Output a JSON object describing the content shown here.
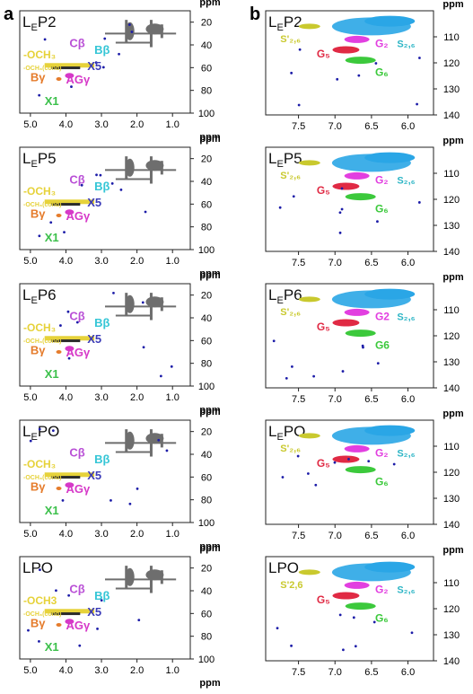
{
  "panel_letters": {
    "a": "a",
    "b": "b"
  },
  "axis_unit": "ppm",
  "colors": {
    "methoxyl": "#e6d23a",
    "cbeta": "#b94fd6",
    "bbeta": "#35c6d6",
    "x5": "#3b3bb8",
    "bgamma": "#e57c2c",
    "aggamma": "#d639c8",
    "x1": "#3cc04b",
    "gray_crosspeak": "#6e6e6e",
    "blue_noise": "#1c1ca8",
    "s26": "#2aa6e6",
    "s26prime": "#c9c92e",
    "g2": "#e23fe0",
    "g5": "#e02a44",
    "g6": "#3cc93c"
  },
  "left_axis": {
    "x_ticks": [
      "5.0",
      "4.0",
      "3.0",
      "2.0",
      "1.0"
    ],
    "y_ticks": [
      "20",
      "40",
      "60",
      "80",
      "100"
    ]
  },
  "right_axis": {
    "x_ticks": [
      "7.5",
      "7.0",
      "6.5",
      "6.0"
    ],
    "y_ticks": [
      "110",
      "120",
      "130",
      "140"
    ]
  },
  "rows": [
    {
      "sample_left": "LEP2",
      "sample_right": "LEP2",
      "labels_a": {
        "och3": "-OCH₃",
        "och3_cond": "-OCH₃(cond)",
        "cbeta": "Cβ",
        "bbeta": "Bβ",
        "x5": "X5",
        "bgamma": "Bγ",
        "aggamma": "AGγ",
        "x1": "X1"
      },
      "labels_b": {
        "s26p": "S'₂,₆",
        "s26": "S₂,₆",
        "g5": "G₅",
        "g2": "G₂",
        "g6": "G₆"
      }
    },
    {
      "sample_left": "LEP5",
      "sample_right": "LEP5",
      "labels_a": {
        "och3": "-OCH₃",
        "och3_cond": "-OCH₃(cond)",
        "cbeta": "Cβ",
        "bbeta": "Bβ",
        "x5": "X5",
        "bgamma": "Bγ",
        "aggamma": "AGγ",
        "x1": "X1"
      },
      "labels_b": {
        "s26p": "S'₂,₆",
        "s26": "S₂,₆",
        "g5": "G₅",
        "g2": "G₂",
        "g6": "G₆"
      }
    },
    {
      "sample_left": "LEP6",
      "sample_right": "LEP6",
      "labels_a": {
        "och3": "-OCH₃",
        "och3_cond": "-OCH₃(cond)",
        "cbeta": "Cβ",
        "bbeta": "Bβ",
        "x5": "X5",
        "bgamma": "Bγ",
        "aggamma": "AGγ",
        "x1": "X1"
      },
      "labels_b": {
        "s26p": "S'₂,₆",
        "s26": "S₂,₆",
        "g5": "G₅",
        "g2": "G2",
        "g6": "G6"
      }
    },
    {
      "sample_left": "LEPO",
      "sample_right": "LEPO",
      "labels_a": {
        "och3": "-OCH₃",
        "och3_cond": "-OCH₃(cond)",
        "cbeta": "Cβ",
        "bbeta": "Bβ",
        "x5": "X5",
        "bgamma": "Bγ",
        "aggamma": "AGγ",
        "x1": "X1"
      },
      "labels_b": {
        "s26p": "S'₂,₆",
        "s26": "S₂,₆",
        "g5": "G₅",
        "g2": "G₂",
        "g6": "G₆"
      }
    },
    {
      "sample_left": "LPO",
      "sample_right": "LPO",
      "labels_a": {
        "och3": "-OCH3",
        "och3_cond": "-OCH₃(cond)",
        "cbeta": "Cβ",
        "bbeta": "Bβ",
        "x5": "X5",
        "bgamma": "Bγ",
        "aggamma": "AGγ",
        "x1": "X1"
      },
      "labels_b": {
        "s26p": "S'2,6",
        "s26": "S₂,₆",
        "g5": "G₅",
        "g2": "G₂",
        "g6": "G₆"
      }
    }
  ]
}
